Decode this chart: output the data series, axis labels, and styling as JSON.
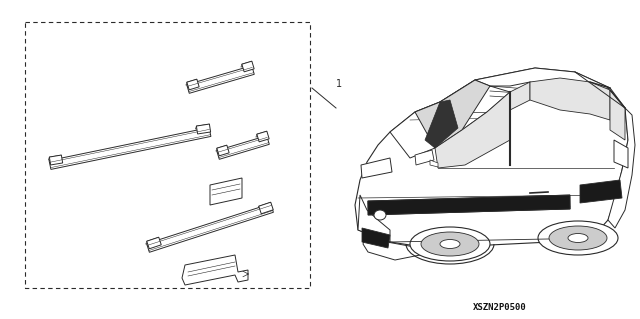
{
  "background_color": "#ffffff",
  "part_number_label": "XSZN2P0500",
  "reference_number": "1",
  "fig_width": 6.4,
  "fig_height": 3.19,
  "dpi": 100,
  "line_color": "#2a2a2a",
  "fill_white": "#ffffff",
  "fill_light": "#e8e8e8",
  "fill_mid": "#cccccc",
  "fill_dark": "#555555"
}
